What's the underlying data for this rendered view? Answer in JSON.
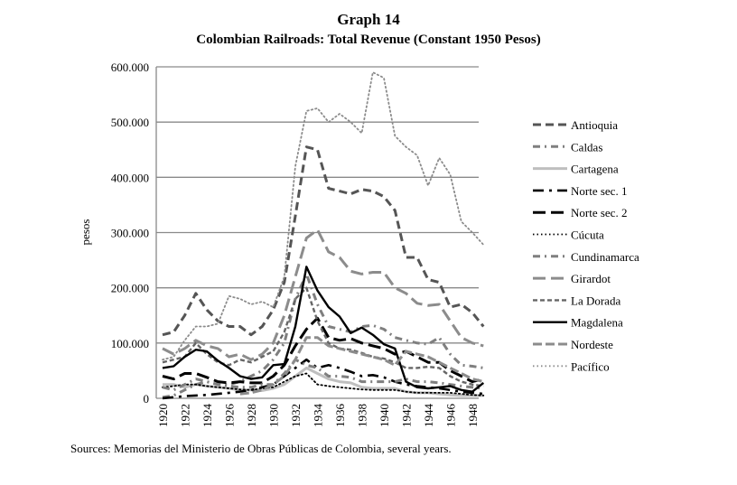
{
  "chart_data": {
    "type": "line",
    "title": "Graph 14",
    "subtitle": "Colombian Railroads: Total Revenue (Constant 1950 Pesos)",
    "xlabel": "",
    "ylabel": "pesos",
    "ylim": [
      0,
      600000
    ],
    "yticks": [
      0,
      100000,
      200000,
      300000,
      400000,
      500000,
      600000
    ],
    "ytick_labels": [
      "0",
      "100.000",
      "200.000",
      "300.000",
      "400.000",
      "500.000",
      "600.000"
    ],
    "xtick_labels": [
      "1920",
      "1922",
      "1924",
      "1926",
      "1928",
      "1930",
      "1932",
      "1934",
      "1936",
      "1938",
      "1940",
      "1942",
      "1944",
      "1946",
      "1948"
    ],
    "grid": true,
    "legend_position": "right",
    "x": [
      1920,
      1921,
      1922,
      1923,
      1924,
      1925,
      1926,
      1927,
      1928,
      1929,
      1930,
      1931,
      1932,
      1933,
      1934,
      1935,
      1936,
      1937,
      1938,
      1939,
      1940,
      1941,
      1942,
      1943,
      1944,
      1945,
      1946,
      1947,
      1948,
      1949
    ],
    "series": [
      {
        "name": "Antioquia",
        "color": "#555555",
        "style": "dash",
        "values": [
          115000,
          120000,
          150000,
          190000,
          160000,
          140000,
          130000,
          130000,
          115000,
          130000,
          160000,
          210000,
          330000,
          455000,
          450000,
          380000,
          375000,
          370000,
          378000,
          375000,
          365000,
          340000,
          255000,
          255000,
          215000,
          210000,
          165000,
          170000,
          155000,
          130000
        ]
      },
      {
        "name": "Caldas",
        "color": "#7f7f7f",
        "style": "dashdot",
        "values": [
          2000,
          5000,
          15000,
          25000,
          30000,
          25000,
          25000,
          30000,
          40000,
          50000,
          70000,
          100000,
          180000,
          225000,
          170000,
          130000,
          125000,
          120000,
          130000,
          132000,
          125000,
          110000,
          105000,
          100000,
          98000,
          110000,
          80000,
          60000,
          58000,
          55000
        ]
      },
      {
        "name": "Cartagena",
        "color": "#bfbfbf",
        "style": "solid",
        "values": [
          25000,
          25000,
          20000,
          25000,
          22000,
          20000,
          18000,
          15000,
          15000,
          14000,
          18000,
          25000,
          40000,
          55000,
          45000,
          35000,
          30000,
          28000,
          20000,
          18000,
          18000,
          18000,
          12000,
          10000,
          10000,
          8000,
          6000,
          5000,
          5000,
          5000
        ]
      },
      {
        "name": "Norte sec. 1",
        "color": "#000000",
        "style": "longdashdot",
        "values": [
          0,
          2000,
          4000,
          5000,
          6000,
          8000,
          10000,
          12000,
          15000,
          20000,
          25000,
          40000,
          55000,
          70000,
          55000,
          60000,
          55000,
          48000,
          40000,
          42000,
          38000,
          30000,
          25000,
          22000,
          20000,
          18000,
          15000,
          12000,
          10000,
          8000
        ]
      },
      {
        "name": "Norte sec. 2",
        "color": "#000000",
        "style": "longdash",
        "values": [
          40000,
          35000,
          45000,
          45000,
          38000,
          30000,
          28000,
          30000,
          28000,
          28000,
          40000,
          60000,
          95000,
          125000,
          145000,
          110000,
          105000,
          108000,
          100000,
          95000,
          90000,
          80000,
          85000,
          75000,
          65000,
          65000,
          50000,
          40000,
          30000,
          35000
        ]
      },
      {
        "name": "Cúcuta",
        "color": "#000000",
        "style": "dot",
        "values": [
          20000,
          22000,
          25000,
          25000,
          22000,
          20000,
          18000,
          16000,
          15000,
          18000,
          20000,
          30000,
          40000,
          45000,
          25000,
          22000,
          20000,
          18000,
          16000,
          15000,
          15000,
          15000,
          12000,
          10000,
          10000,
          10000,
          10000,
          8000,
          6000,
          5000
        ]
      },
      {
        "name": "Cundinamarca",
        "color": "#7f7f7f",
        "style": "dashdot",
        "values": [
          20000,
          15000,
          25000,
          35000,
          30000,
          25000,
          22000,
          20000,
          20000,
          25000,
          25000,
          45000,
          70000,
          60000,
          55000,
          40000,
          40000,
          38000,
          30000,
          30000,
          30000,
          30000,
          35000,
          30000,
          30000,
          28000,
          25000,
          22000,
          20000,
          18000
        ]
      },
      {
        "name": "Girardot",
        "color": "#8c8c8c",
        "style": "longdash",
        "values": [
          90000,
          80000,
          90000,
          105000,
          95000,
          90000,
          75000,
          80000,
          70000,
          80000,
          100000,
          150000,
          220000,
          290000,
          305000,
          265000,
          255000,
          230000,
          225000,
          228000,
          228000,
          200000,
          190000,
          172000,
          168000,
          170000,
          140000,
          110000,
          100000,
          95000
        ]
      },
      {
        "name": "La Dorada",
        "color": "#666666",
        "style": "shortdash",
        "values": [
          65000,
          70000,
          75000,
          100000,
          80000,
          65000,
          60000,
          70000,
          65000,
          75000,
          85000,
          120000,
          180000,
          200000,
          140000,
          100000,
          90000,
          88000,
          82000,
          75000,
          72000,
          65000,
          55000,
          55000,
          57000,
          55000,
          40000,
          30000,
          25000,
          22000
        ]
      },
      {
        "name": "Magdalena",
        "color": "#000000",
        "style": "solid",
        "values": [
          55000,
          58000,
          75000,
          88000,
          85000,
          68000,
          55000,
          40000,
          35000,
          38000,
          60000,
          62000,
          130000,
          238000,
          195000,
          165000,
          148000,
          118000,
          128000,
          115000,
          98000,
          90000,
          30000,
          20000,
          18000,
          20000,
          22000,
          15000,
          12000,
          28000
        ]
      },
      {
        "name": "Nordeste",
        "color": "#8c8c8c",
        "style": "dashdash",
        "values": [
          null,
          null,
          null,
          null,
          null,
          null,
          null,
          8000,
          10000,
          15000,
          25000,
          40000,
          70000,
          110000,
          110000,
          95000,
          90000,
          85000,
          80000,
          75000,
          70000,
          60000,
          85000,
          80000,
          75000,
          65000,
          55000,
          45000,
          35000,
          30000
        ]
      },
      {
        "name": "Pacífico",
        "color": "#8c8c8c",
        "style": "dot",
        "values": [
          70000,
          75000,
          105000,
          130000,
          130000,
          135000,
          185000,
          180000,
          170000,
          175000,
          165000,
          220000,
          420000,
          520000,
          525000,
          500000,
          515000,
          500000,
          480000,
          590000,
          580000,
          475000,
          455000,
          440000,
          385000,
          435000,
          405000,
          320000,
          300000,
          278000
        ]
      }
    ]
  },
  "source": "Sources: Memorias del Ministerio de Obras Públicas de Colombia, several years."
}
